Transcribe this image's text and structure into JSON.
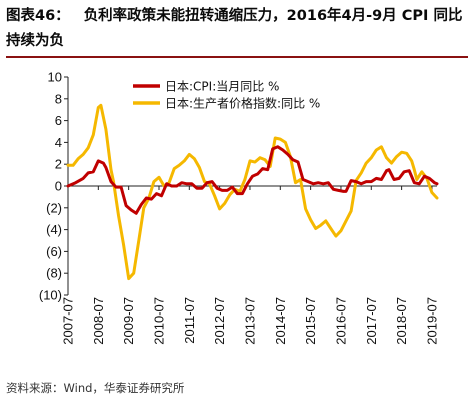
{
  "header": {
    "figure_label": "图表46：",
    "title": "负利率政策未能扭转通缩压力，2016年4月-9月 CPI 同比持续为负"
  },
  "footer": {
    "source": "资料来源：Wind，华泰证券研究所"
  },
  "chart_data": {
    "type": "line",
    "title": "负利率政策未能扭转通缩压力，2016年4月-9月 CPI 同比持续为负",
    "xlabel": "",
    "ylabel": "",
    "ylim": [
      -10,
      10
    ],
    "yticks": [
      10,
      8,
      6,
      4,
      2,
      0,
      -2,
      -4,
      -6,
      -8,
      -10
    ],
    "ytick_labels": [
      "10",
      "8",
      "6",
      "4",
      "2",
      "0",
      "(2)",
      "(4)",
      "(6)",
      "(8)",
      "(10)"
    ],
    "x_start": "2007-07",
    "x_end": "2019-09",
    "xtick_labels": [
      "2007-07",
      "2008-07",
      "2009-07",
      "2010-07",
      "2011-07",
      "2012-07",
      "2013-07",
      "2014-07",
      "2015-07",
      "2016-07",
      "2017-07",
      "2018-07",
      "2019-07"
    ],
    "grid": false,
    "legend_position": "top-center",
    "series": [
      {
        "name": "日本:CPI:当月同比 %",
        "color": "#c00000",
        "values": [
          [
            "2007-07",
            0.0
          ],
          [
            "2007-10",
            0.3
          ],
          [
            "2008-01",
            0.7
          ],
          [
            "2008-03",
            1.2
          ],
          [
            "2008-05",
            1.3
          ],
          [
            "2008-07",
            2.3
          ],
          [
            "2008-09",
            2.1
          ],
          [
            "2008-10",
            1.7
          ],
          [
            "2008-12",
            0.4
          ],
          [
            "2009-02",
            -0.1
          ],
          [
            "2009-04",
            -0.1
          ],
          [
            "2009-06",
            -1.8
          ],
          [
            "2009-08",
            -2.2
          ],
          [
            "2009-10",
            -2.5
          ],
          [
            "2009-12",
            -1.7
          ],
          [
            "2010-02",
            -1.1
          ],
          [
            "2010-04",
            -1.2
          ],
          [
            "2010-06",
            -0.7
          ],
          [
            "2010-08",
            -0.9
          ],
          [
            "2010-10",
            0.2
          ],
          [
            "2010-12",
            0.0
          ],
          [
            "2011-02",
            0.0
          ],
          [
            "2011-04",
            0.3
          ],
          [
            "2011-06",
            0.2
          ],
          [
            "2011-08",
            0.2
          ],
          [
            "2011-10",
            -0.2
          ],
          [
            "2011-12",
            -0.2
          ],
          [
            "2012-02",
            0.3
          ],
          [
            "2012-04",
            0.4
          ],
          [
            "2012-06",
            -0.2
          ],
          [
            "2012-08",
            -0.4
          ],
          [
            "2012-10",
            -0.4
          ],
          [
            "2012-12",
            -0.1
          ],
          [
            "2013-02",
            -0.7
          ],
          [
            "2013-04",
            -0.7
          ],
          [
            "2013-06",
            0.2
          ],
          [
            "2013-08",
            0.9
          ],
          [
            "2013-10",
            1.1
          ],
          [
            "2013-12",
            1.6
          ],
          [
            "2014-02",
            1.5
          ],
          [
            "2014-04",
            3.4
          ],
          [
            "2014-06",
            3.6
          ],
          [
            "2014-08",
            3.3
          ],
          [
            "2014-10",
            2.9
          ],
          [
            "2014-12",
            2.4
          ],
          [
            "2015-02",
            2.2
          ],
          [
            "2015-04",
            0.6
          ],
          [
            "2015-06",
            0.4
          ],
          [
            "2015-08",
            0.2
          ],
          [
            "2015-10",
            0.3
          ],
          [
            "2015-12",
            0.2
          ],
          [
            "2016-02",
            0.3
          ],
          [
            "2016-04",
            -0.3
          ],
          [
            "2016-06",
            -0.4
          ],
          [
            "2016-08",
            -0.5
          ],
          [
            "2016-09",
            -0.5
          ],
          [
            "2016-11",
            0.5
          ],
          [
            "2017-01",
            0.4
          ],
          [
            "2017-03",
            0.2
          ],
          [
            "2017-05",
            0.4
          ],
          [
            "2017-07",
            0.4
          ],
          [
            "2017-09",
            0.7
          ],
          [
            "2017-11",
            0.6
          ],
          [
            "2018-01",
            1.4
          ],
          [
            "2018-02",
            1.5
          ],
          [
            "2018-04",
            0.6
          ],
          [
            "2018-06",
            0.7
          ],
          [
            "2018-08",
            1.3
          ],
          [
            "2018-10",
            1.4
          ],
          [
            "2018-12",
            0.3
          ],
          [
            "2019-02",
            0.2
          ],
          [
            "2019-04",
            0.9
          ],
          [
            "2019-06",
            0.7
          ],
          [
            "2019-08",
            0.3
          ],
          [
            "2019-09",
            0.2
          ]
        ]
      },
      {
        "name": "日本:生产者价格指数:同比 %",
        "color": "#f5b800",
        "values": [
          [
            "2007-07",
            1.9
          ],
          [
            "2007-09",
            1.9
          ],
          [
            "2007-11",
            2.5
          ],
          [
            "2008-01",
            2.9
          ],
          [
            "2008-03",
            3.5
          ],
          [
            "2008-05",
            4.7
          ],
          [
            "2008-07",
            7.2
          ],
          [
            "2008-08",
            7.4
          ],
          [
            "2008-10",
            5.2
          ],
          [
            "2008-12",
            1.5
          ],
          [
            "2009-01",
            0.4
          ],
          [
            "2009-03",
            -2.7
          ],
          [
            "2009-05",
            -5.4
          ],
          [
            "2009-07",
            -8.5
          ],
          [
            "2009-09",
            -8.0
          ],
          [
            "2009-11",
            -5.0
          ],
          [
            "2010-01",
            -2.0
          ],
          [
            "2010-03",
            -1.1
          ],
          [
            "2010-05",
            0.4
          ],
          [
            "2010-07",
            0.8
          ],
          [
            "2010-09",
            0.0
          ],
          [
            "2010-11",
            0.3
          ],
          [
            "2011-01",
            1.6
          ],
          [
            "2011-03",
            1.9
          ],
          [
            "2011-05",
            2.3
          ],
          [
            "2011-07",
            2.9
          ],
          [
            "2011-09",
            2.5
          ],
          [
            "2011-11",
            1.7
          ],
          [
            "2012-01",
            0.4
          ],
          [
            "2012-03",
            0.2
          ],
          [
            "2012-05",
            -0.9
          ],
          [
            "2012-07",
            -2.1
          ],
          [
            "2012-09",
            -1.6
          ],
          [
            "2012-11",
            -0.8
          ],
          [
            "2013-01",
            -0.3
          ],
          [
            "2013-03",
            -0.5
          ],
          [
            "2013-05",
            0.6
          ],
          [
            "2013-07",
            2.3
          ],
          [
            "2013-09",
            2.2
          ],
          [
            "2013-11",
            2.6
          ],
          [
            "2014-01",
            2.4
          ],
          [
            "2014-03",
            1.8
          ],
          [
            "2014-05",
            4.4
          ],
          [
            "2014-07",
            4.3
          ],
          [
            "2014-09",
            4.0
          ],
          [
            "2014-11",
            2.7
          ],
          [
            "2015-01",
            0.3
          ],
          [
            "2015-03",
            0.6
          ],
          [
            "2015-05",
            -2.1
          ],
          [
            "2015-07",
            -3.1
          ],
          [
            "2015-09",
            -3.9
          ],
          [
            "2015-11",
            -3.6
          ],
          [
            "2016-01",
            -3.2
          ],
          [
            "2016-03",
            -3.9
          ],
          [
            "2016-05",
            -4.6
          ],
          [
            "2016-07",
            -4.1
          ],
          [
            "2016-09",
            -3.2
          ],
          [
            "2016-11",
            -2.3
          ],
          [
            "2017-01",
            0.5
          ],
          [
            "2017-03",
            1.2
          ],
          [
            "2017-05",
            2.1
          ],
          [
            "2017-07",
            2.6
          ],
          [
            "2017-09",
            3.3
          ],
          [
            "2017-11",
            3.6
          ],
          [
            "2018-01",
            2.6
          ],
          [
            "2018-03",
            2.1
          ],
          [
            "2018-05",
            2.7
          ],
          [
            "2018-07",
            3.1
          ],
          [
            "2018-09",
            3.0
          ],
          [
            "2018-11",
            2.3
          ],
          [
            "2018-12",
            1.5
          ],
          [
            "2019-01",
            0.6
          ],
          [
            "2019-03",
            1.3
          ],
          [
            "2019-05",
            0.7
          ],
          [
            "2019-07",
            -0.6
          ],
          [
            "2019-09",
            -1.1
          ]
        ]
      }
    ]
  }
}
